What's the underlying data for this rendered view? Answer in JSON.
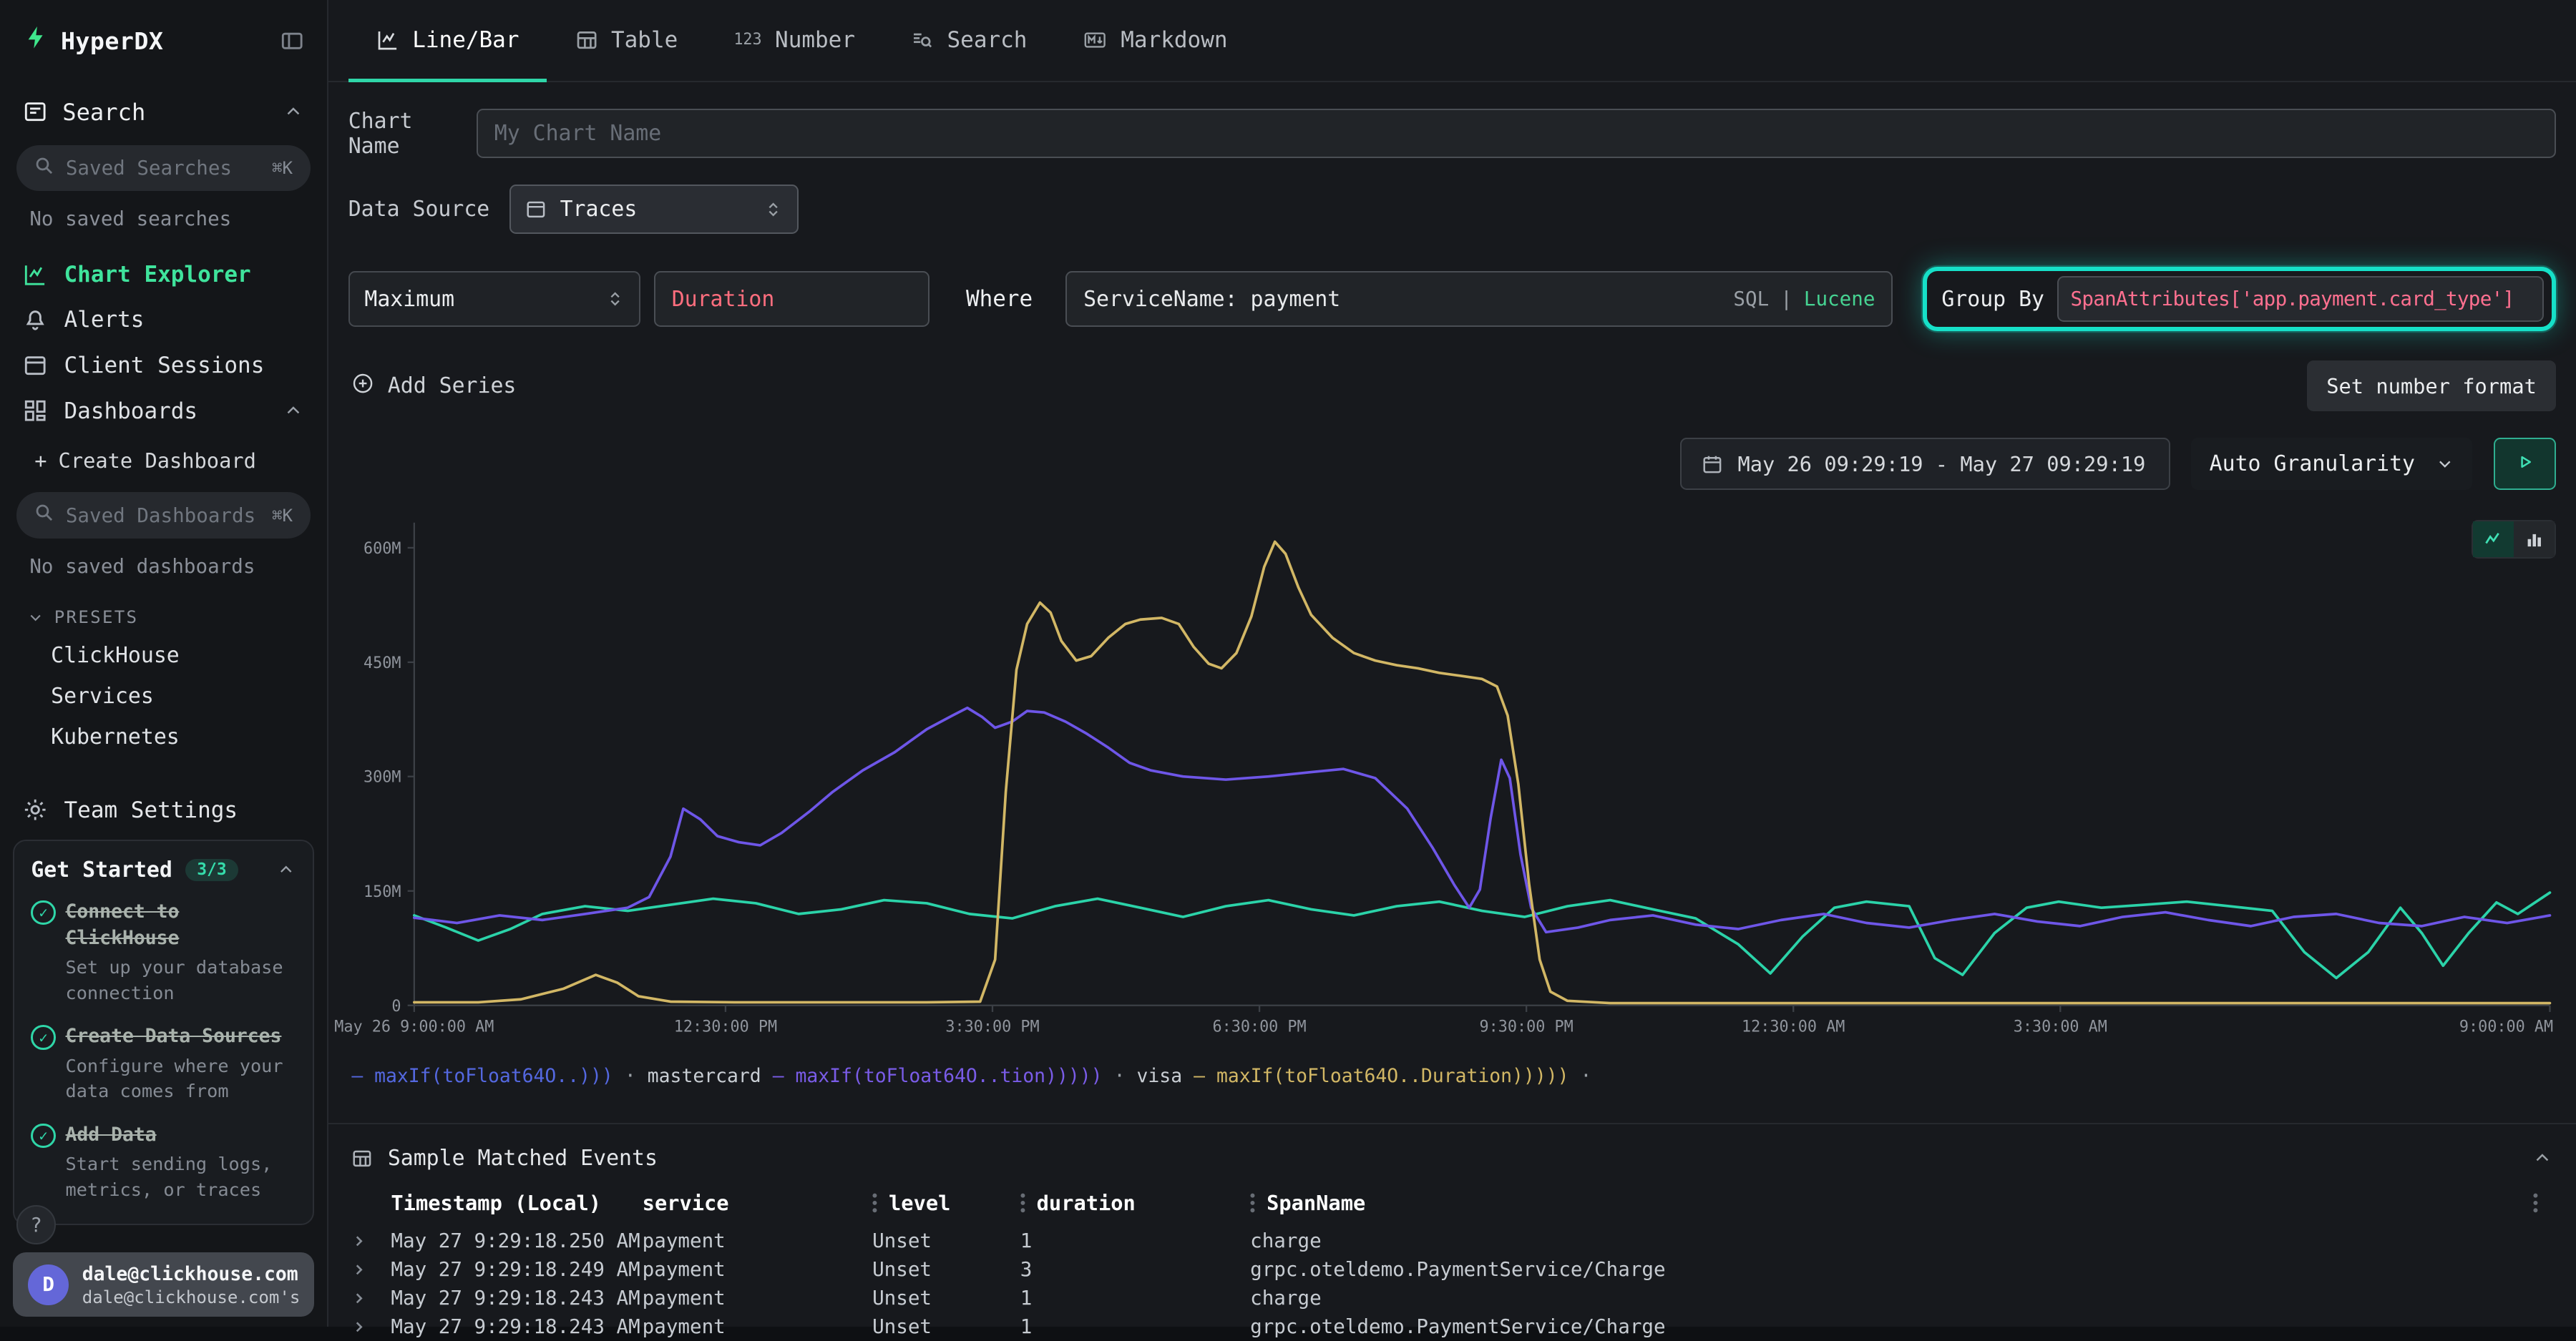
{
  "brand": {
    "name": "HyperDX",
    "green": "#3fe88c"
  },
  "sidebar": {
    "search_section": {
      "title": "Search",
      "saved_placeholder": "Saved Searches",
      "shortcut": "⌘K",
      "empty": "No saved searches"
    },
    "nav": [
      {
        "label": "Chart Explorer",
        "icon": "chart-line",
        "active": true
      },
      {
        "label": "Alerts",
        "icon": "bell",
        "active": false
      },
      {
        "label": "Client Sessions",
        "icon": "browser",
        "active": false
      },
      {
        "label": "Dashboards",
        "icon": "layout-grid",
        "active": false
      }
    ],
    "dashboards": {
      "create_plus": "+",
      "create": "Create Dashboard",
      "saved_placeholder": "Saved Dashboards",
      "shortcut": "⌘K",
      "empty": "No saved dashboards",
      "presets_label": "PRESETS",
      "presets": [
        "ClickHouse",
        "Services",
        "Kubernetes"
      ]
    },
    "team_settings": "Team Settings",
    "get_started": {
      "title": "Get Started",
      "badge": "3/3",
      "items": [
        {
          "title": "Connect to ClickHouse",
          "desc": "Set up your database connection",
          "check": "✓"
        },
        {
          "title": "Create Data Sources",
          "desc": "Configure where your data comes from",
          "check": "✓"
        },
        {
          "title": "Add Data",
          "desc": "Start sending logs, metrics, or traces",
          "check": "✓"
        }
      ]
    },
    "help": "?",
    "user": {
      "initial": "D",
      "email": "dale@clickhouse.com",
      "org": "dale@clickhouse.com's"
    }
  },
  "tabs": [
    {
      "label": "Line/Bar",
      "active": true
    },
    {
      "label": "Table",
      "active": false
    },
    {
      "label": "Number",
      "icon_text": "123",
      "active": false
    },
    {
      "label": "Search",
      "active": false
    },
    {
      "label": "Markdown",
      "active": false
    }
  ],
  "form": {
    "chart_name_label": "Chart Name",
    "chart_name_placeholder": "My Chart Name",
    "data_source_label": "Data Source",
    "data_source_value": "Traces",
    "aggregation_value": "Maximum",
    "field_value": "Duration",
    "where_label": "Where",
    "where_value": "ServiceName: payment",
    "sql_label": "SQL",
    "sql_divider": "|",
    "lucene_label": "Lucene",
    "group_by_label": "Group By",
    "group_by_value": "SpanAttributes['app.payment.card_type']",
    "add_series_label": "Add Series",
    "set_number_format_label": "Set number format",
    "highlight_color": "#16e0c8",
    "field_color": "#ff6e7e",
    "group_by_color": "#ff7090"
  },
  "chart_controls": {
    "date_range": "May 26 09:29:19 - May 27 09:29:19",
    "granularity": "Auto Granularity"
  },
  "chart_data": {
    "type": "line",
    "value_unit": "M (nanoseconds, maxIf of Duration)",
    "ymax": 620,
    "y_ticks": [
      {
        "v": 0,
        "label": "0"
      },
      {
        "v": 150,
        "label": "150M"
      },
      {
        "v": 300,
        "label": "300M"
      },
      {
        "v": 450,
        "label": "450M"
      },
      {
        "v": 600,
        "label": "600M"
      }
    ],
    "x_ticks": [
      {
        "f": 0,
        "label": "May 26 9:00:00 AM"
      },
      {
        "f": 0.1458,
        "label": "12:30:00 PM"
      },
      {
        "f": 0.2708,
        "label": "3:30:00 PM"
      },
      {
        "f": 0.3958,
        "label": "6:30:00 PM"
      },
      {
        "f": 0.5208,
        "label": "9:30:00 PM"
      },
      {
        "f": 0.6458,
        "label": "12:30:00 AM"
      },
      {
        "f": 0.7708,
        "label": "3:30:00 AM"
      },
      {
        "f": 1,
        "label": "9:00:00 AM"
      }
    ],
    "series": [
      {
        "name": "maxIf(toFloat64O..)))",
        "color": "#2bd3a9",
        "points": [
          [
            0,
            118
          ],
          [
            0.015,
            102
          ],
          [
            0.03,
            85
          ],
          [
            0.045,
            100
          ],
          [
            0.06,
            120
          ],
          [
            0.08,
            130
          ],
          [
            0.1,
            124
          ],
          [
            0.12,
            132
          ],
          [
            0.14,
            140
          ],
          [
            0.16,
            134
          ],
          [
            0.18,
            120
          ],
          [
            0.2,
            126
          ],
          [
            0.22,
            138
          ],
          [
            0.24,
            134
          ],
          [
            0.26,
            120
          ],
          [
            0.28,
            114
          ],
          [
            0.3,
            130
          ],
          [
            0.32,
            140
          ],
          [
            0.34,
            128
          ],
          [
            0.36,
            116
          ],
          [
            0.38,
            130
          ],
          [
            0.4,
            138
          ],
          [
            0.42,
            126
          ],
          [
            0.44,
            118
          ],
          [
            0.46,
            130
          ],
          [
            0.48,
            136
          ],
          [
            0.5,
            124
          ],
          [
            0.52,
            116
          ],
          [
            0.54,
            130
          ],
          [
            0.56,
            138
          ],
          [
            0.58,
            126
          ],
          [
            0.6,
            114
          ],
          [
            0.62,
            80
          ],
          [
            0.635,
            42
          ],
          [
            0.65,
            90
          ],
          [
            0.665,
            128
          ],
          [
            0.68,
            136
          ],
          [
            0.7,
            130
          ],
          [
            0.712,
            62
          ],
          [
            0.725,
            40
          ],
          [
            0.74,
            95
          ],
          [
            0.755,
            128
          ],
          [
            0.77,
            136
          ],
          [
            0.79,
            128
          ],
          [
            0.81,
            132
          ],
          [
            0.83,
            136
          ],
          [
            0.85,
            130
          ],
          [
            0.87,
            124
          ],
          [
            0.885,
            70
          ],
          [
            0.9,
            36
          ],
          [
            0.915,
            70
          ],
          [
            0.93,
            128
          ],
          [
            0.94,
            95
          ],
          [
            0.95,
            52
          ],
          [
            0.962,
            95
          ],
          [
            0.975,
            135
          ],
          [
            0.985,
            120
          ],
          [
            1,
            148
          ]
        ]
      },
      {
        "name": "mastercard maxIf(toFloat64O..tion)))))",
        "color": "#6e56e8",
        "points": [
          [
            0,
            115
          ],
          [
            0.02,
            108
          ],
          [
            0.04,
            118
          ],
          [
            0.06,
            112
          ],
          [
            0.08,
            120
          ],
          [
            0.1,
            128
          ],
          [
            0.11,
            142
          ],
          [
            0.12,
            195
          ],
          [
            0.126,
            258
          ],
          [
            0.134,
            244
          ],
          [
            0.142,
            222
          ],
          [
            0.152,
            214
          ],
          [
            0.162,
            210
          ],
          [
            0.172,
            226
          ],
          [
            0.185,
            254
          ],
          [
            0.196,
            280
          ],
          [
            0.21,
            308
          ],
          [
            0.225,
            332
          ],
          [
            0.24,
            362
          ],
          [
            0.252,
            380
          ],
          [
            0.259,
            390
          ],
          [
            0.266,
            378
          ],
          [
            0.272,
            364
          ],
          [
            0.28,
            372
          ],
          [
            0.287,
            386
          ],
          [
            0.295,
            384
          ],
          [
            0.305,
            372
          ],
          [
            0.315,
            356
          ],
          [
            0.325,
            338
          ],
          [
            0.335,
            318
          ],
          [
            0.345,
            308
          ],
          [
            0.36,
            300
          ],
          [
            0.38,
            296
          ],
          [
            0.4,
            300
          ],
          [
            0.42,
            306
          ],
          [
            0.435,
            310
          ],
          [
            0.45,
            298
          ],
          [
            0.465,
            258
          ],
          [
            0.477,
            206
          ],
          [
            0.487,
            158
          ],
          [
            0.494,
            128
          ],
          [
            0.499,
            152
          ],
          [
            0.504,
            245
          ],
          [
            0.509,
            322
          ],
          [
            0.513,
            298
          ],
          [
            0.518,
            198
          ],
          [
            0.523,
            128
          ],
          [
            0.53,
            96
          ],
          [
            0.545,
            102
          ],
          [
            0.56,
            112
          ],
          [
            0.58,
            118
          ],
          [
            0.6,
            106
          ],
          [
            0.62,
            100
          ],
          [
            0.64,
            112
          ],
          [
            0.66,
            120
          ],
          [
            0.68,
            108
          ],
          [
            0.7,
            102
          ],
          [
            0.72,
            112
          ],
          [
            0.74,
            120
          ],
          [
            0.76,
            110
          ],
          [
            0.78,
            104
          ],
          [
            0.8,
            116
          ],
          [
            0.82,
            122
          ],
          [
            0.84,
            112
          ],
          [
            0.86,
            104
          ],
          [
            0.88,
            116
          ],
          [
            0.9,
            120
          ],
          [
            0.92,
            108
          ],
          [
            0.94,
            104
          ],
          [
            0.96,
            116
          ],
          [
            0.98,
            108
          ],
          [
            1,
            118
          ]
        ]
      },
      {
        "name": "visa maxIf(toFloat64O..Duration)))))",
        "color": "#d2b765",
        "points": [
          [
            0,
            4
          ],
          [
            0.03,
            4
          ],
          [
            0.05,
            8
          ],
          [
            0.07,
            22
          ],
          [
            0.085,
            40
          ],
          [
            0.095,
            30
          ],
          [
            0.105,
            12
          ],
          [
            0.12,
            5
          ],
          [
            0.15,
            4
          ],
          [
            0.18,
            4
          ],
          [
            0.21,
            4
          ],
          [
            0.24,
            4
          ],
          [
            0.265,
            5
          ],
          [
            0.272,
            60
          ],
          [
            0.277,
            280
          ],
          [
            0.282,
            440
          ],
          [
            0.287,
            500
          ],
          [
            0.293,
            528
          ],
          [
            0.298,
            515
          ],
          [
            0.303,
            478
          ],
          [
            0.31,
            452
          ],
          [
            0.317,
            458
          ],
          [
            0.325,
            482
          ],
          [
            0.333,
            500
          ],
          [
            0.34,
            506
          ],
          [
            0.35,
            508
          ],
          [
            0.358,
            500
          ],
          [
            0.365,
            470
          ],
          [
            0.372,
            448
          ],
          [
            0.378,
            442
          ],
          [
            0.385,
            462
          ],
          [
            0.392,
            510
          ],
          [
            0.398,
            575
          ],
          [
            0.403,
            608
          ],
          [
            0.408,
            592
          ],
          [
            0.414,
            548
          ],
          [
            0.42,
            512
          ],
          [
            0.43,
            482
          ],
          [
            0.44,
            462
          ],
          [
            0.45,
            452
          ],
          [
            0.46,
            446
          ],
          [
            0.47,
            442
          ],
          [
            0.48,
            436
          ],
          [
            0.49,
            432
          ],
          [
            0.5,
            428
          ],
          [
            0.507,
            418
          ],
          [
            0.512,
            380
          ],
          [
            0.517,
            290
          ],
          [
            0.522,
            160
          ],
          [
            0.527,
            60
          ],
          [
            0.532,
            18
          ],
          [
            0.54,
            6
          ],
          [
            0.56,
            3
          ],
          [
            0.6,
            3
          ],
          [
            0.65,
            3
          ],
          [
            0.7,
            3
          ],
          [
            0.75,
            3
          ],
          [
            0.8,
            3
          ],
          [
            0.85,
            3
          ],
          [
            0.9,
            3
          ],
          [
            0.95,
            3
          ],
          [
            1,
            3
          ]
        ]
      }
    ]
  },
  "legend": {
    "separator": "·",
    "items": [
      {
        "group": "",
        "dash": "—",
        "code": "maxIf(toFloat64O..)))",
        "color": "#5468e0"
      },
      {
        "group": "mastercard",
        "dash": "—",
        "code": "maxIf(toFloat64O..tion)))))",
        "color": "#7a5ce8"
      },
      {
        "group": "visa",
        "dash": "—",
        "code": "maxIf(toFloat64O..Duration)))))",
        "color": "#d2b765"
      }
    ]
  },
  "events": {
    "title": "Sample Matched Events",
    "columns": [
      "Timestamp (Local)",
      "service",
      "level",
      "duration",
      "SpanName"
    ],
    "rows": [
      {
        "timestamp": "May 27 9:29:18.250 AM",
        "service": "payment",
        "level": "Unset",
        "duration": "1",
        "span_name": "charge"
      },
      {
        "timestamp": "May 27 9:29:18.249 AM",
        "service": "payment",
        "level": "Unset",
        "duration": "3",
        "span_name": "grpc.oteldemo.PaymentService/Charge"
      },
      {
        "timestamp": "May 27 9:29:18.243 AM",
        "service": "payment",
        "level": "Unset",
        "duration": "1",
        "span_name": "charge"
      },
      {
        "timestamp": "May 27 9:29:18.243 AM",
        "service": "payment",
        "level": "Unset",
        "duration": "1",
        "span_name": "grpc.oteldemo.PaymentService/Charge"
      }
    ]
  }
}
